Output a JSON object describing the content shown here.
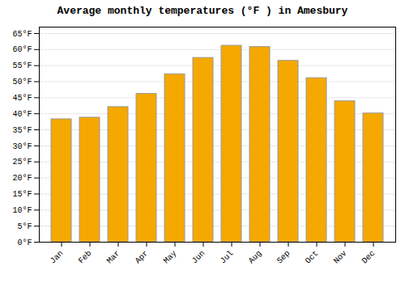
{
  "chart_data": {
    "type": "bar",
    "title": "Average monthly temperatures (°F ) in Amesbury",
    "categories": [
      "Jan",
      "Feb",
      "Mar",
      "Apr",
      "May",
      "Jun",
      "Jul",
      "Aug",
      "Sep",
      "Oct",
      "Nov",
      "Dec"
    ],
    "values": [
      38.3,
      38.8,
      42.1,
      46.2,
      52.3,
      57.4,
      61.2,
      60.8,
      56.5,
      51.1,
      43.9,
      40.1
    ],
    "color": "#F5A800",
    "ylim": [
      0,
      67
    ],
    "yticks": [
      {
        "value": 0,
        "label": "0°F"
      },
      {
        "value": 5,
        "label": "5°F"
      },
      {
        "value": 10,
        "label": "10°F"
      },
      {
        "value": 15,
        "label": "15°F"
      },
      {
        "value": 20,
        "label": "20°F"
      },
      {
        "value": 25,
        "label": "25°F"
      },
      {
        "value": 30,
        "label": "30°F"
      },
      {
        "value": 35,
        "label": "35°F"
      },
      {
        "value": 40,
        "label": "40°F"
      },
      {
        "value": 45,
        "label": "45°F"
      },
      {
        "value": 50,
        "label": "50°F"
      },
      {
        "value": 55,
        "label": "55°F"
      },
      {
        "value": 60,
        "label": "60°F"
      },
      {
        "value": 65,
        "label": "65°F"
      }
    ],
    "grid": true
  }
}
